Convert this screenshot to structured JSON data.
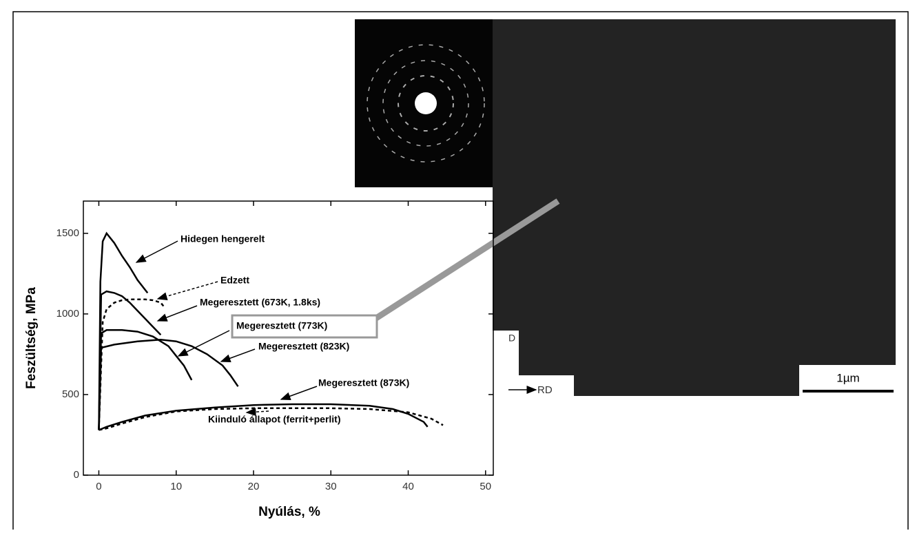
{
  "chart_data": {
    "type": "line",
    "xlabel": "Nyúlás, %",
    "ylabel": "Feszültség, MPa",
    "xlim": [
      -2,
      51
    ],
    "ylim": [
      0,
      1700
    ],
    "xticks": [
      0,
      10,
      20,
      30,
      40,
      50
    ],
    "yticks": [
      0,
      500,
      1000,
      1500
    ],
    "series": [
      {
        "name": "Hidegen hengerelt",
        "color": "#000000",
        "linestyle": "solid",
        "x": [
          0,
          0.2,
          0.5,
          1,
          2,
          3,
          4,
          5,
          6.3
        ],
        "values": [
          280,
          1200,
          1450,
          1500,
          1440,
          1360,
          1290,
          1210,
          1130
        ]
      },
      {
        "name": "Edzett",
        "color": "#000000",
        "linestyle": "dashed",
        "x": [
          0,
          0.5,
          1,
          2,
          3,
          4,
          5,
          6,
          7,
          8,
          8.5
        ],
        "values": [
          280,
          950,
          1030,
          1070,
          1085,
          1090,
          1090,
          1090,
          1085,
          1070,
          1040
        ]
      },
      {
        "name": "Megeresztett (673K, 1.8ks)",
        "color": "#000000",
        "linestyle": "solid",
        "x": [
          0,
          0.3,
          1,
          2,
          3,
          4,
          5,
          6,
          7,
          8
        ],
        "values": [
          280,
          1120,
          1140,
          1130,
          1110,
          1070,
          1020,
          970,
          920,
          870
        ]
      },
      {
        "name": "Megeresztett (773K)",
        "color": "#000000",
        "linestyle": "solid",
        "x": [
          0,
          0.3,
          1,
          3,
          5,
          7,
          9,
          10,
          11,
          12
        ],
        "values": [
          280,
          880,
          900,
          900,
          890,
          860,
          800,
          740,
          680,
          590
        ]
      },
      {
        "name": "Megeresztett (823K)",
        "color": "#000000",
        "linestyle": "solid",
        "x": [
          0,
          0.3,
          2,
          5,
          8,
          10,
          12,
          14,
          16,
          17,
          18
        ],
        "values": [
          280,
          790,
          810,
          830,
          840,
          830,
          800,
          750,
          680,
          620,
          550
        ]
      },
      {
        "name": "Megeresztett (873K)",
        "color": "#000000",
        "linestyle": "solid",
        "x": [
          0,
          0.5,
          1,
          3,
          6,
          10,
          15,
          20,
          25,
          30,
          35,
          38,
          40,
          42,
          42.5
        ],
        "values": [
          280,
          290,
          300,
          330,
          370,
          400,
          420,
          435,
          440,
          440,
          430,
          410,
          380,
          330,
          300
        ]
      },
      {
        "name": "Kiinduló állapot (ferrit+perlit)",
        "color": "#000000",
        "linestyle": "dashed",
        "x": [
          0,
          1,
          3,
          6,
          10,
          15,
          20,
          25,
          30,
          35,
          40,
          43,
          44.5
        ],
        "values": [
          280,
          290,
          320,
          360,
          395,
          410,
          415,
          415,
          415,
          410,
          390,
          350,
          310
        ]
      }
    ]
  },
  "micrograph": {
    "scale_bar": "1µm",
    "direction": "RD",
    "marker": "D"
  }
}
